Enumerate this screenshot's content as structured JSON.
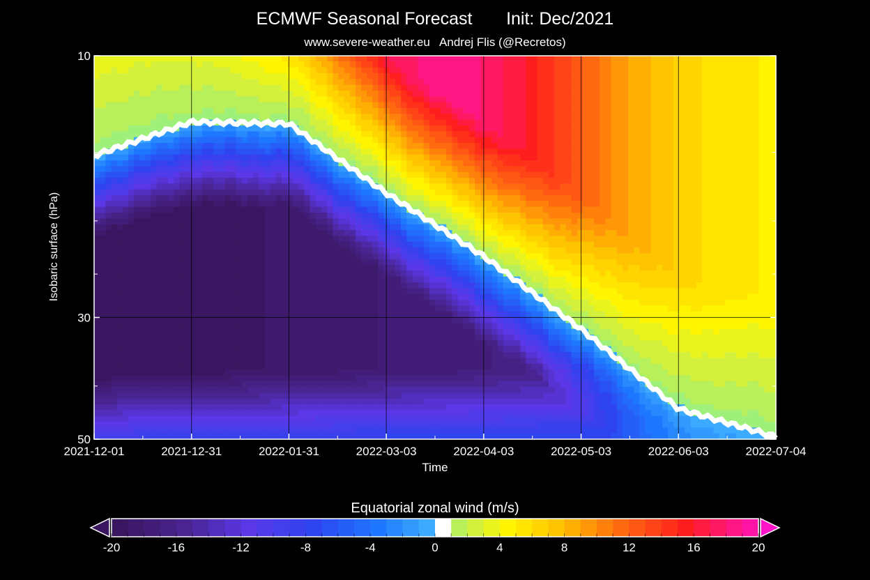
{
  "header": {
    "title": "ECMWF Seasonal Forecast       Init: Dec/2021",
    "subtitle": "www.severe-weather.eu   Andrej Flis (@Recretos)"
  },
  "chart_data": {
    "type": "heatmap",
    "title": "ECMWF Seasonal Forecast       Init: Dec/2021",
    "subtitle": "www.severe-weather.eu   Andrej Flis (@Recretos)",
    "xlabel": "Time",
    "ylabel": "Isobaric surface (hPa)",
    "x_ticks": [
      "2021-12-01",
      "2021-12-31",
      "2022-01-31",
      "2022-03-03",
      "2022-04-03",
      "2022-05-03",
      "2022-06-03",
      "2022-07-04"
    ],
    "y_ticks": [
      10,
      30,
      50
    ],
    "ylim": [
      50,
      10
    ],
    "zero_wind_line_hpa": {
      "x": [
        "2021-12-01",
        "2021-12-31",
        "2022-01-31",
        "2022-03-03",
        "2022-04-03",
        "2022-05-03",
        "2022-06-03",
        "2022-07-04"
      ],
      "y": [
        15.2,
        13.2,
        13.3,
        17.8,
        23.2,
        31.5,
        44.0,
        49.5
      ]
    },
    "colorbar": {
      "title": "Equatorial zonal wind (m/s)",
      "min": -20,
      "max": 20,
      "step": 1,
      "tick_labels": [
        "-20",
        "-16",
        "-12",
        "-8",
        "-4",
        "0",
        "4",
        "8",
        "12",
        "16",
        "20"
      ]
    }
  }
}
